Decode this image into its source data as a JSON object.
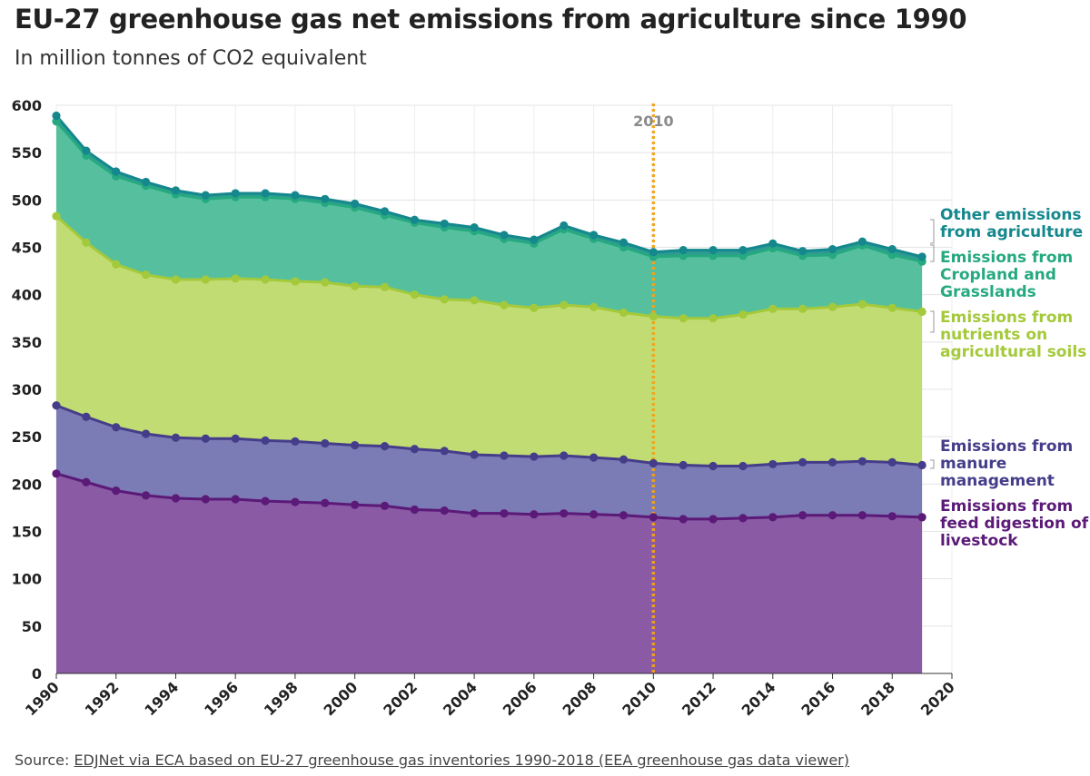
{
  "title": "EU-27 greenhouse gas net emissions from agriculture since 1990",
  "subtitle": "In million tonnes of CO2 equivalent",
  "source": {
    "prefix": "Source: ",
    "link_text": "EDJNet via ECA based on EU-27 greenhouse gas inventories 1990-2018 (EEA greenhouse gas data viewer)"
  },
  "chart_data": {
    "type": "area",
    "stacked": true,
    "x": [
      1990,
      1991,
      1992,
      1993,
      1994,
      1995,
      1996,
      1997,
      1998,
      1999,
      2000,
      2001,
      2002,
      2003,
      2004,
      2005,
      2006,
      2007,
      2008,
      2009,
      2010,
      2011,
      2012,
      2013,
      2014,
      2015,
      2016,
      2017,
      2018,
      2019
    ],
    "xlim": [
      1990,
      2020
    ],
    "ylim": [
      0,
      600
    ],
    "x_ticks": [
      "1990",
      "1992",
      "1994",
      "1996",
      "1998",
      "2000",
      "2002",
      "2004",
      "2006",
      "2008",
      "2010",
      "2012",
      "2014",
      "2016",
      "2018",
      "2020"
    ],
    "y_ticks": [
      "0",
      "50",
      "100",
      "150",
      "200",
      "250",
      "300",
      "350",
      "400",
      "450",
      "500",
      "550",
      "600"
    ],
    "grid": true,
    "legend": "right",
    "series": [
      {
        "name": "Emissions from feed digestion of livestock",
        "label_lines": [
          "Emissions from",
          "feed digestion of",
          "livestock"
        ],
        "color": "#5b1a78",
        "fill": "#8a5aa5",
        "cumulative": [
          211,
          202,
          193,
          188,
          185,
          184,
          184,
          182,
          181,
          180,
          178,
          177,
          173,
          172,
          169,
          169,
          168,
          169,
          168,
          167,
          165,
          163,
          163,
          164,
          165,
          167,
          167,
          167,
          166,
          165
        ]
      },
      {
        "name": "Emissions from manure management",
        "label_lines": [
          "Emissions from",
          "manure",
          "management"
        ],
        "color": "#453d8a",
        "fill": "#7b7bb5",
        "cumulative": [
          283,
          271,
          260,
          253,
          249,
          248,
          248,
          246,
          245,
          243,
          241,
          240,
          237,
          235,
          231,
          230,
          229,
          230,
          228,
          226,
          222,
          220,
          219,
          219,
          221,
          223,
          223,
          224,
          223,
          220
        ]
      },
      {
        "name": "Emissions from nutrients on agricultural soils",
        "label_lines": [
          "Emissions from",
          "nutrients on",
          "agricultural soils"
        ],
        "color": "#a4c93a",
        "fill": "#c2dc74",
        "cumulative": [
          483,
          455,
          432,
          421,
          416,
          416,
          417,
          416,
          414,
          413,
          409,
          408,
          400,
          395,
          394,
          389,
          386,
          389,
          387,
          381,
          377,
          375,
          375,
          379,
          385,
          385,
          387,
          390,
          386,
          382
        ]
      },
      {
        "name": "Emissions from Cropland and Grasslands",
        "label_lines": [
          "Emissions from",
          "Cropland and",
          "Grasslands"
        ],
        "color": "#26a980",
        "fill": "#56c09e",
        "cumulative": [
          583,
          547,
          525,
          515,
          506,
          501,
          503,
          503,
          501,
          497,
          492,
          484,
          476,
          471,
          467,
          459,
          454,
          469,
          459,
          450,
          440,
          441,
          441,
          441,
          449,
          441,
          442,
          452,
          442,
          435
        ]
      },
      {
        "name": "Other emissions from agriculture",
        "label_lines": [
          "Other emissions",
          "from agriculture"
        ],
        "color": "#14888d",
        "fill": "#2e9b93",
        "cumulative": [
          589,
          552,
          530,
          519,
          510,
          505,
          507,
          507,
          505,
          501,
          496,
          488,
          479,
          475,
          471,
          463,
          458,
          473,
          463,
          455,
          445,
          447,
          447,
          447,
          454,
          446,
          448,
          456,
          448,
          440
        ]
      }
    ],
    "annotations": [
      {
        "type": "vertical-line",
        "x": 2010,
        "label": "2010",
        "color": "#f2a31b"
      }
    ]
  }
}
